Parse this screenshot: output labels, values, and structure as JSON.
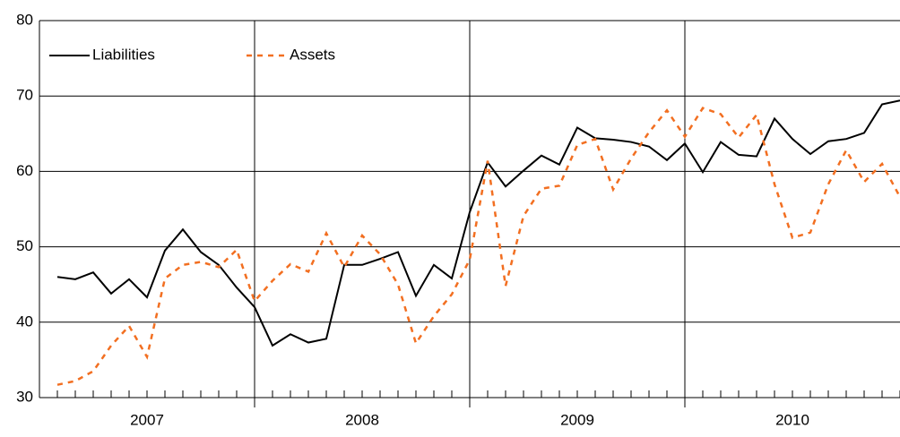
{
  "chart_data": {
    "type": "line",
    "categories": [
      null,
      null,
      null,
      null,
      null,
      null,
      null,
      null,
      null,
      null,
      null,
      null,
      null,
      null,
      null,
      null,
      null,
      null,
      null,
      null,
      null,
      null,
      null,
      null,
      null,
      null,
      null,
      null,
      null,
      null,
      null,
      null,
      null,
      null,
      null,
      null,
      null,
      null,
      null,
      null,
      null,
      null,
      null,
      null,
      null,
      null,
      null,
      null
    ],
    "x_groups": [
      "2007",
      "2008",
      "2009",
      "2010"
    ],
    "series": [
      {
        "name": "Liabilities",
        "color": "#000000",
        "dash": "solid",
        "values": [
          46.0,
          45.7,
          46.6,
          43.8,
          45.7,
          43.3,
          49.5,
          52.3,
          49.3,
          47.6,
          44.6,
          42.0,
          36.9,
          38.4,
          37.3,
          37.8,
          47.6,
          47.6,
          48.4,
          49.3,
          43.5,
          47.6,
          45.8,
          54.6,
          61.2,
          58.0,
          60.1,
          62.1,
          60.9,
          65.8,
          64.4,
          64.2,
          63.9,
          63.3,
          61.5,
          63.7,
          59.9,
          63.9,
          62.2,
          62.0,
          67.0,
          64.3,
          62.3,
          64.0,
          64.3,
          65.1,
          68.9,
          69.4
        ]
      },
      {
        "name": "Assets",
        "color": "#f26f21",
        "dash": "dashed",
        "values": [
          31.7,
          32.2,
          33.5,
          36.9,
          39.5,
          35.4,
          45.8,
          47.6,
          48.0,
          47.3,
          49.6,
          42.8,
          45.5,
          47.7,
          46.7,
          51.8,
          47.3,
          51.5,
          49.0,
          45.0,
          37.2,
          40.8,
          43.7,
          48.3,
          61.4,
          44.8,
          54.1,
          57.7,
          58.1,
          63.5,
          64.3,
          57.6,
          61.7,
          65.2,
          68.1,
          64.6,
          68.4,
          67.6,
          64.5,
          67.5,
          58.3,
          51.2,
          51.9,
          58.3,
          62.8,
          58.6,
          61.0,
          56.6
        ]
      }
    ],
    "ylim": [
      30,
      80
    ],
    "yticks": [
      30,
      40,
      50,
      60,
      70,
      80
    ],
    "grid": true,
    "legend": "top-left"
  }
}
